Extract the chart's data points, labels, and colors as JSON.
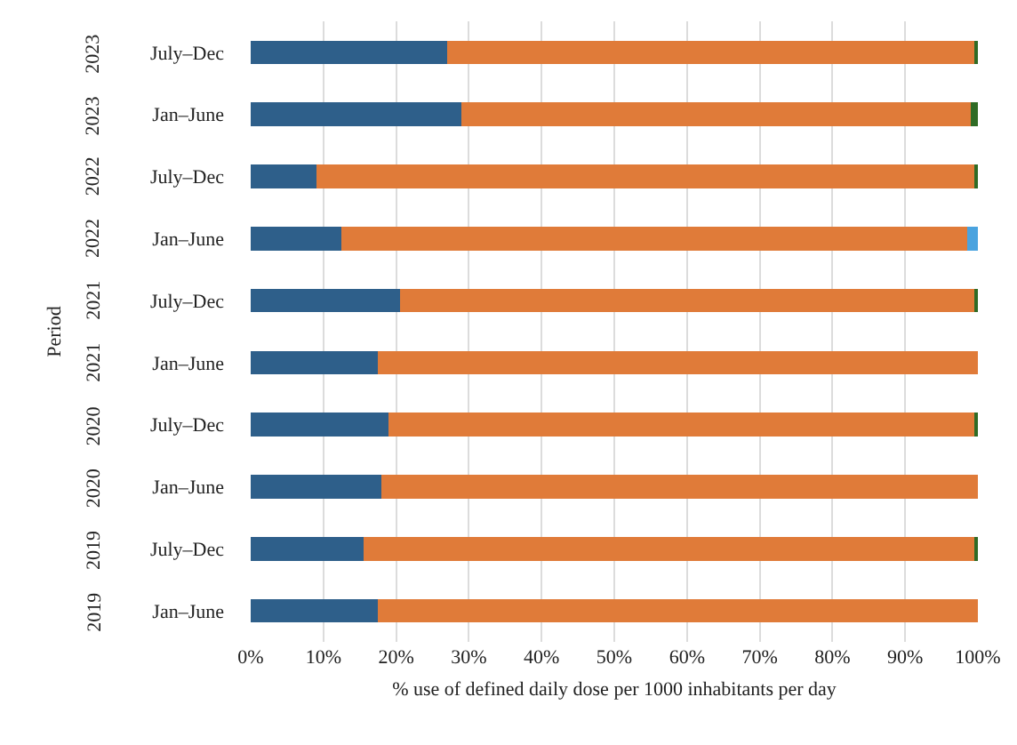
{
  "chart_data": {
    "type": "bar",
    "orientation": "horizontal",
    "stacked": true,
    "xlabel": "% use of defined daily dose per 1000 inhabitants per day",
    "annotations": [
      "Period"
    ],
    "categories": [
      "July–Dec 2023",
      "Jan–June 2023",
      "July–Dec 2022",
      "Jan–June 2022",
      "July–Dec 2021",
      "Jan–June 2021",
      "July–Dec 2020",
      "Jan–June 2020",
      "July–Dec 2019",
      "Jan–June 2019"
    ],
    "series": [
      {
        "color": "#2e5f8a",
        "values": [
          27,
          29,
          9,
          12.5,
          20.5,
          17.5,
          19,
          18,
          15.5,
          17.5
        ]
      },
      {
        "color": "#e07b39",
        "values": [
          72.5,
          70,
          90.7,
          86,
          79,
          82.5,
          80.5,
          82,
          84,
          82.5
        ]
      },
      {
        "color": "#2f6b25",
        "values": [
          0.5,
          1,
          0.3,
          0,
          0.5,
          0,
          0.5,
          0,
          0.5,
          0
        ]
      },
      {
        "color": "#4aa3df",
        "values": [
          0,
          0,
          0,
          1.5,
          0,
          0,
          0,
          0,
          0,
          0
        ]
      }
    ],
    "xlim": [
      0,
      100
    ],
    "xticks": [
      {
        "value": 0,
        "label": "0%"
      },
      {
        "value": 10,
        "label": "10%"
      },
      {
        "value": 20,
        "label": "20%"
      },
      {
        "value": 30,
        "label": "30%"
      },
      {
        "value": 40,
        "label": "40%"
      },
      {
        "value": 50,
        "label": "50%"
      },
      {
        "value": 60,
        "label": "60%"
      },
      {
        "value": 70,
        "label": "70%"
      },
      {
        "value": 80,
        "label": "80%"
      },
      {
        "value": 90,
        "label": "90%"
      },
      {
        "value": 100,
        "label": "100%"
      }
    ],
    "grid": "x"
  }
}
